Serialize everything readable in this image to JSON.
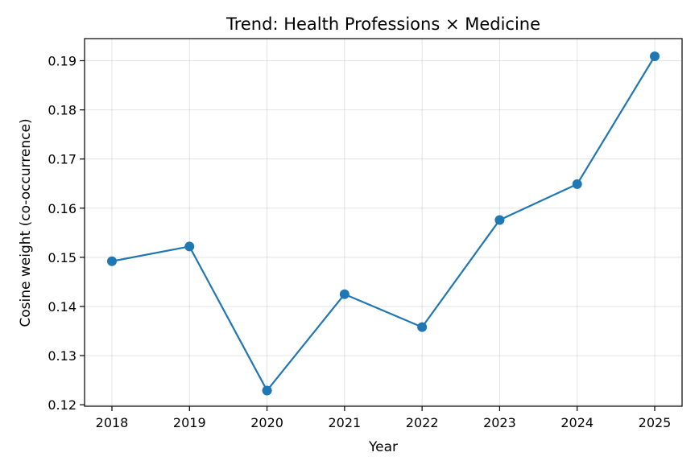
{
  "chart_data": {
    "type": "line",
    "title": "Trend: Health Professions × Medicine",
    "xlabel": "Year",
    "ylabel": "Cosine weight (co-occurrence)",
    "x": [
      "2018",
      "2019",
      "2020",
      "2021",
      "2022",
      "2023",
      "2024",
      "2025"
    ],
    "series": [
      {
        "values": [
          0.1492,
          0.1522,
          0.1229,
          0.1425,
          0.1358,
          0.1576,
          0.1649,
          0.1909
        ],
        "color": "#1f77b4",
        "marker": "circle"
      }
    ],
    "yticks": [
      "0.12",
      "0.13",
      "0.14",
      "0.15",
      "0.16",
      "0.17",
      "0.18",
      "0.19"
    ],
    "ylim": [
      0.1197,
      0.1945
    ],
    "grid": true,
    "legend": "none"
  }
}
